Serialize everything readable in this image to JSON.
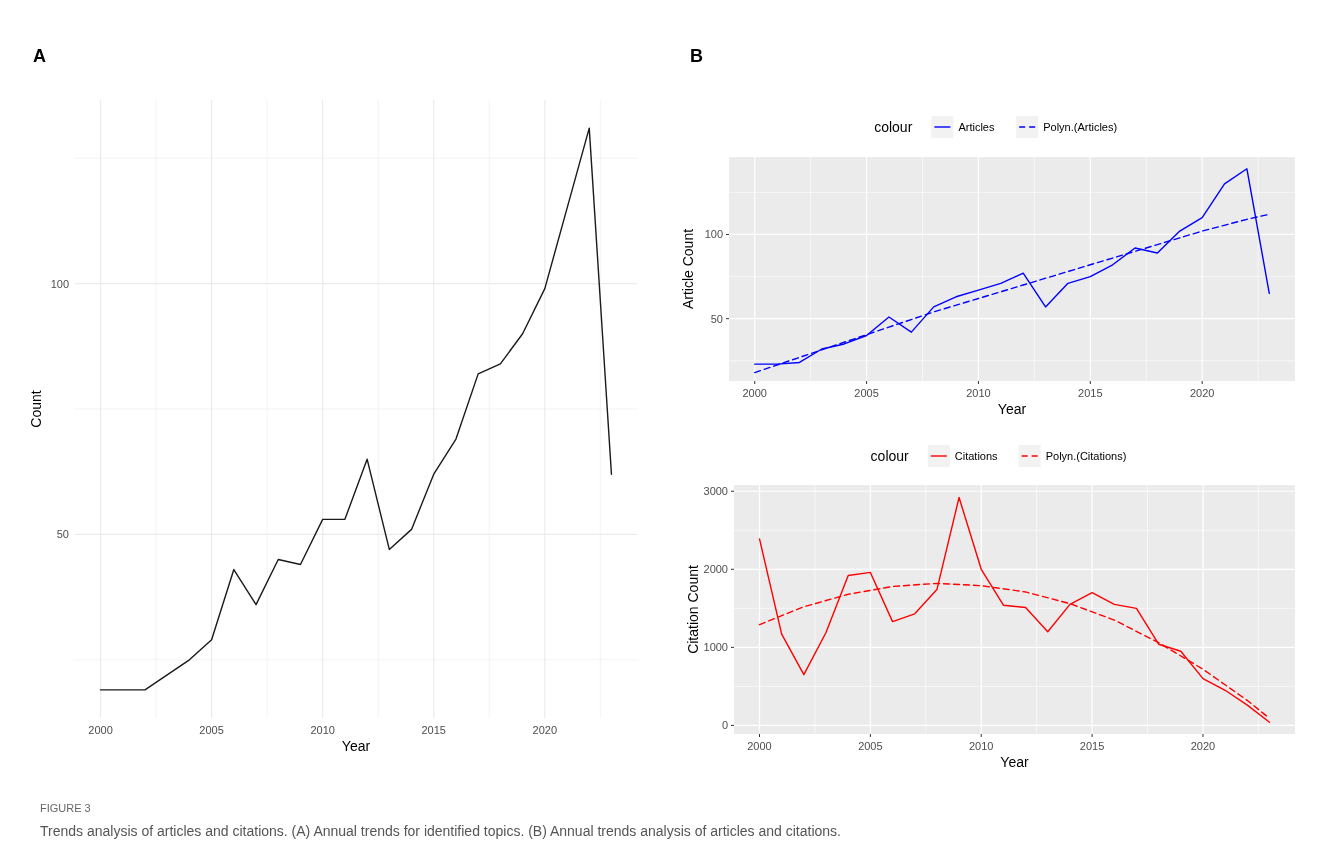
{
  "chart_data": [
    {
      "type": "line",
      "title": "A",
      "xlabel": "Year",
      "ylabel": "Count",
      "grid": true,
      "legend": false,
      "x": [
        2000,
        2001,
        2002,
        2003,
        2004,
        2005,
        2006,
        2007,
        2008,
        2009,
        2010,
        2011,
        2012,
        2013,
        2014,
        2015,
        2016,
        2017,
        2018,
        2019,
        2020,
        2021,
        2022,
        2023
      ],
      "xlim": [
        1998.85,
        2024.15
      ],
      "xticks": [
        2000,
        {
          "value": 2002.5,
          "label": null
        },
        2005,
        {
          "value": 2007.5,
          "label": null
        },
        2010,
        {
          "value": 2012.5,
          "label": null
        },
        2015,
        {
          "value": 2017.5,
          "label": null
        },
        2020,
        {
          "value": 2022.5,
          "label": null
        }
      ],
      "ylim": [
        13.4,
        136.6
      ],
      "yticks": [
        {
          "value": 25,
          "label": null
        },
        50,
        {
          "value": 75,
          "label": null
        },
        100,
        {
          "value": 125,
          "label": null
        }
      ],
      "series": [
        {
          "color": "#1a1a1a",
          "values": [
            19,
            19,
            19,
            22,
            25,
            29,
            43,
            36,
            45,
            44,
            53,
            53,
            65,
            47,
            51,
            62,
            69,
            82,
            84,
            90,
            99,
            115,
            131,
            62
          ]
        }
      ],
      "annotations": [
        "FIGURE 3",
        "Trends analysis of articles and citations. (A) Annual trends for identified topics. (B) Annual trends analysis of articles and citations."
      ]
    },
    {
      "type": "line",
      "title": "B",
      "xlabel": "Year",
      "ylabel": "Article Count",
      "grid": true,
      "legend": "top",
      "legend_title": "colour",
      "x": [
        2000,
        2001,
        2002,
        2003,
        2004,
        2005,
        2006,
        2007,
        2008,
        2009,
        2010,
        2011,
        2012,
        2013,
        2014,
        2015,
        2016,
        2017,
        2018,
        2019,
        2020,
        2021,
        2022,
        2023
      ],
      "xlim": [
        1998.85,
        2024.15
      ],
      "xticks": [
        2000,
        {
          "value": 2002.5,
          "label": null
        },
        2005,
        {
          "value": 2007.5,
          "label": null
        },
        2010,
        {
          "value": 2012.5,
          "label": null
        },
        2015,
        {
          "value": 2017.5,
          "label": null
        },
        2020,
        {
          "value": 2022.5,
          "label": null
        }
      ],
      "ylim": [
        13,
        146
      ],
      "yticks": [
        {
          "value": 25,
          "label": null
        },
        50,
        {
          "value": 75,
          "label": null
        },
        100,
        {
          "value": 125,
          "label": null
        }
      ],
      "series": [
        {
          "name": "Articles",
          "color": "#0000ff",
          "line_style": "solid",
          "values": [
            23,
            23,
            24,
            32,
            35,
            40,
            51,
            42,
            57,
            63,
            67,
            71,
            77,
            57,
            71,
            75,
            82,
            92,
            89,
            102,
            110,
            130,
            139,
            65
          ]
        },
        {
          "name": "Polyn.(Articles)",
          "type": "line",
          "color": "#0000ff",
          "line_style": "dashed",
          "x": [
            2000,
            2002,
            2004,
            2006,
            2008,
            2010,
            2012,
            2014,
            2016,
            2018,
            2020,
            2022,
            2023
          ],
          "values": [
            18,
            27,
            36,
            45,
            54,
            62,
            70,
            78,
            86,
            94,
            102,
            109,
            112
          ]
        }
      ]
    },
    {
      "type": "line",
      "xlabel": "Year",
      "ylabel": "Citation Count",
      "grid": true,
      "legend": "top",
      "legend_title": "colour",
      "x": [
        2000,
        2001,
        2002,
        2003,
        2004,
        2005,
        2006,
        2007,
        2008,
        2009,
        2010,
        2011,
        2012,
        2013,
        2014,
        2015,
        2016,
        2017,
        2018,
        2019,
        2020,
        2021,
        2022,
        2023
      ],
      "xlim": [
        1998.85,
        2024.15
      ],
      "xticks": [
        2000,
        {
          "value": 2002.5,
          "label": null
        },
        2005,
        {
          "value": 2007.5,
          "label": null
        },
        2010,
        {
          "value": 2012.5,
          "label": null
        },
        2015,
        {
          "value": 2017.5,
          "label": null
        },
        2020,
        {
          "value": 2022.5,
          "label": null
        }
      ],
      "ylim": [
        -110,
        3080
      ],
      "yticks": [
        0,
        {
          "value": 500,
          "label": null
        },
        1000,
        {
          "value": 1500,
          "label": null
        },
        2000,
        {
          "value": 2500,
          "label": null
        },
        3000
      ],
      "series": [
        {
          "name": "Citations",
          "color": "#ff0000",
          "line_style": "solid",
          "values": [
            2390,
            1170,
            650,
            1190,
            1920,
            1960,
            1330,
            1430,
            1740,
            2920,
            2000,
            1540,
            1510,
            1200,
            1550,
            1700,
            1550,
            1500,
            1040,
            950,
            600,
            450,
            260,
            40
          ]
        },
        {
          "name": "Polyn.(Citations)",
          "type": "line",
          "color": "#ff0000",
          "line_style": "dashed",
          "x": [
            2000,
            2002,
            2004,
            2006,
            2008,
            2010,
            2012,
            2014,
            2016,
            2018,
            2020,
            2022,
            2023
          ],
          "values": [
            1290,
            1520,
            1680,
            1780,
            1820,
            1790,
            1710,
            1560,
            1350,
            1060,
            720,
            320,
            90
          ]
        }
      ]
    }
  ]
}
